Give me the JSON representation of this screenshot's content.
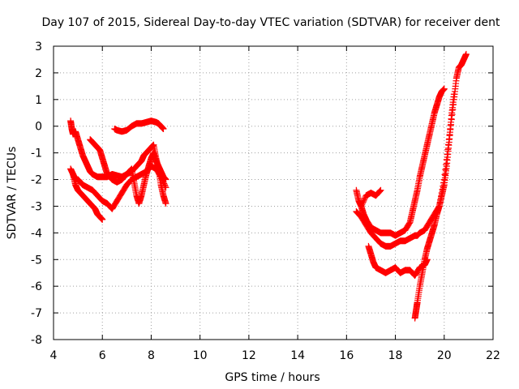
{
  "chart_data": {
    "type": "scatter",
    "title": "Day 107 of 2015, Sidereal Day-to-day VTEC variation (SDTVAR) for receiver dent",
    "xlabel": "GPS time / hours",
    "ylabel": "SDTVAR / TECUs",
    "xlim": [
      4,
      22
    ],
    "ylim": [
      -8,
      3
    ],
    "xticks": [
      4,
      6,
      8,
      10,
      12,
      14,
      16,
      18,
      20,
      22
    ],
    "yticks": [
      3,
      2,
      1,
      0,
      -1,
      -2,
      -3,
      -4,
      -5,
      -6,
      -7,
      -8
    ],
    "grid": true,
    "marker": "+",
    "color": "#ff0000",
    "series": [
      {
        "x": [
          4.7,
          4.75,
          4.8,
          4.9,
          5.0,
          5.1,
          5.2,
          5.3,
          5.4,
          5.5,
          5.6,
          5.8,
          6.0,
          6.2,
          6.4,
          6.6,
          6.8,
          7.0,
          7.2,
          7.4,
          7.5,
          7.6,
          7.7,
          7.8,
          7.9,
          8.0,
          8.1,
          8.2,
          8.3,
          8.4,
          8.5,
          8.6
        ],
        "y": [
          0.2,
          -0.1,
          -0.3,
          -0.2,
          -0.5,
          -0.8,
          -1.1,
          -1.3,
          -1.5,
          -1.7,
          -1.8,
          -1.9,
          -1.9,
          -1.9,
          -1.8,
          -1.85,
          -1.9,
          -1.8,
          -1.7,
          -1.5,
          -1.4,
          -1.3,
          -1.1,
          -1.0,
          -0.9,
          -0.8,
          -0.7,
          -1.2,
          -1.6,
          -2.2,
          -2.6,
          -2.9
        ]
      },
      {
        "x": [
          4.7,
          4.8,
          4.9,
          5.0,
          5.1,
          5.2,
          5.4,
          5.6,
          5.8,
          6.0,
          6.2,
          6.4,
          6.6,
          6.8,
          7.0,
          7.2,
          7.4,
          7.6,
          7.8,
          8.0,
          8.2,
          8.4,
          8.6
        ],
        "y": [
          -1.6,
          -1.8,
          -2.0,
          -2.0,
          -2.1,
          -2.2,
          -2.3,
          -2.4,
          -2.6,
          -2.8,
          -2.9,
          -3.1,
          -2.8,
          -2.5,
          -2.2,
          -2.0,
          -1.9,
          -1.8,
          -1.7,
          -1.5,
          -1.6,
          -1.9,
          -2.3
        ]
      },
      {
        "x": [
          4.8,
          4.9,
          5.0,
          5.1,
          5.2,
          5.3,
          5.4,
          5.5,
          5.6,
          5.7,
          5.8,
          5.9,
          6.0
        ],
        "y": [
          -1.8,
          -2.2,
          -2.4,
          -2.5,
          -2.6,
          -2.7,
          -2.8,
          -2.9,
          -3.0,
          -3.1,
          -3.3,
          -3.4,
          -3.5
        ]
      },
      {
        "x": [
          5.5,
          5.6,
          5.7,
          5.8,
          5.9,
          6.0,
          6.1,
          6.2,
          6.4,
          6.6,
          6.8,
          7.0,
          7.2,
          7.3,
          7.4,
          7.5,
          7.6,
          7.7,
          7.8,
          7.9,
          8.0,
          8.1,
          8.2,
          8.3,
          8.4,
          8.5,
          8.6
        ],
        "y": [
          -0.5,
          -0.6,
          -0.7,
          -0.8,
          -0.9,
          -1.2,
          -1.5,
          -1.8,
          -2.0,
          -2.1,
          -2.0,
          -1.8,
          -1.6,
          -2.1,
          -2.6,
          -2.9,
          -2.6,
          -2.2,
          -1.8,
          -1.5,
          -1.2,
          -1.0,
          -1.3,
          -1.5,
          -1.7,
          -1.9,
          -2.0
        ]
      },
      {
        "x": [
          6.5,
          6.6,
          6.8,
          7.0,
          7.2,
          7.4,
          7.6,
          7.8,
          8.0,
          8.2,
          8.3,
          8.4,
          8.5
        ],
        "y": [
          -0.1,
          -0.15,
          -0.2,
          -0.15,
          0.0,
          0.1,
          0.1,
          0.15,
          0.2,
          0.15,
          0.1,
          0.0,
          -0.1
        ]
      },
      {
        "x": [
          16.4,
          16.5,
          16.6,
          16.7,
          16.8,
          17.0,
          17.2,
          17.4,
          17.6,
          17.8,
          18.0,
          18.2,
          18.4,
          18.6,
          18.7,
          18.8,
          18.9,
          19.0,
          19.1,
          19.2,
          19.3,
          19.4,
          19.5,
          19.6,
          19.7,
          19.8,
          19.9,
          20.0
        ],
        "y": [
          -2.4,
          -2.8,
          -3.0,
          -3.3,
          -3.5,
          -3.8,
          -3.9,
          -4.0,
          -4.0,
          -4.0,
          -4.1,
          -4.0,
          -3.9,
          -3.6,
          -3.2,
          -2.8,
          -2.4,
          -1.9,
          -1.5,
          -1.1,
          -0.7,
          -0.3,
          0.1,
          0.5,
          0.8,
          1.1,
          1.3,
          1.4
        ]
      },
      {
        "x": [
          16.4,
          16.6,
          16.8,
          17.0,
          17.2,
          17.4,
          17.6,
          17.8,
          18.0,
          18.2,
          18.4,
          18.6,
          18.8,
          18.9,
          19.0,
          19.2,
          19.4,
          19.6,
          19.8,
          20.0,
          20.2,
          20.4,
          20.5,
          20.6,
          20.7,
          20.8,
          20.9
        ],
        "y": [
          -3.2,
          -3.4,
          -3.7,
          -4.0,
          -4.2,
          -4.4,
          -4.5,
          -4.5,
          -4.4,
          -4.3,
          -4.3,
          -4.2,
          -4.1,
          -4.1,
          -4.0,
          -3.9,
          -3.6,
          -3.3,
          -3.0,
          -2.0,
          -0.5,
          1.0,
          1.8,
          2.2,
          2.3,
          2.5,
          2.7
        ]
      },
      {
        "x": [
          16.9,
          17.0,
          17.1,
          17.2,
          17.4,
          17.6,
          17.8,
          18.0,
          18.2,
          18.4,
          18.6,
          18.8,
          19.0,
          19.2,
          19.3
        ],
        "y": [
          -4.5,
          -4.8,
          -5.1,
          -5.3,
          -5.4,
          -5.5,
          -5.4,
          -5.3,
          -5.5,
          -5.4,
          -5.4,
          -5.6,
          -5.3,
          -5.2,
          -5.0
        ]
      },
      {
        "x": [
          16.6,
          16.8,
          17.0,
          17.2,
          17.4
        ],
        "y": [
          -3.0,
          -2.6,
          -2.5,
          -2.6,
          -2.4
        ]
      },
      {
        "x": [
          18.8,
          18.85,
          18.9,
          19.0,
          19.1,
          19.2,
          19.3,
          19.4,
          19.5,
          19.6,
          19.7,
          19.8,
          19.9,
          20.0,
          20.1,
          20.2,
          20.3,
          20.4
        ],
        "y": [
          -7.2,
          -6.9,
          -6.6,
          -6.0,
          -5.5,
          -5.0,
          -4.6,
          -4.3,
          -4.0,
          -3.7,
          -3.3,
          -3.0,
          -2.6,
          -2.2,
          -1.5,
          -0.6,
          0.4,
          1.2
        ]
      }
    ]
  }
}
